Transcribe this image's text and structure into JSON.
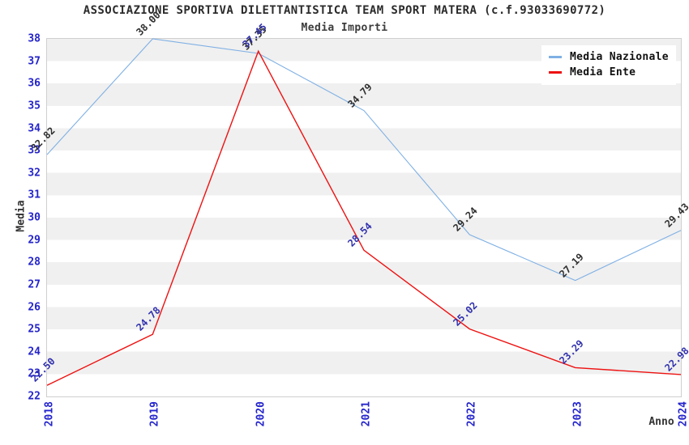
{
  "chart_data": {
    "type": "line",
    "title": "ASSOCIAZIONE SPORTIVA DILETTANTISTICA TEAM SPORT MATERA (c.f.93033690772)",
    "subtitle": "Media Importi",
    "xlabel": "Anno",
    "ylabel": "Media",
    "categories": [
      "2018",
      "2019",
      "2020",
      "2021",
      "2022",
      "2023",
      "2024"
    ],
    "series": [
      {
        "name": "Media Nazionale",
        "color": "#7FB0E4",
        "label_color": "#2F2F2F",
        "values": [
          32.82,
          38.0,
          37.35,
          34.79,
          29.24,
          27.19,
          29.43
        ]
      },
      {
        "name": "Media Ente",
        "color": "#EE1111",
        "label_color": "#3030AE",
        "values": [
          22.5,
          24.78,
          37.45,
          28.54,
          25.02,
          23.29,
          22.98
        ]
      }
    ],
    "ylim": [
      22,
      38
    ],
    "y_tick_step": 1,
    "grid": "horizontal-alternating-bands",
    "legend_position": "top-right",
    "value_label_format": "0.00"
  },
  "colors": {
    "tick_label": "#2424CC",
    "band_gray": "#F0F0F0",
    "band_white": "#FFFFFF",
    "plot_border": "#CFCFCF",
    "title": "#2B2B2B",
    "subtitle": "#3C3C3C",
    "axis_title": "#333333",
    "legend_text": "#111111",
    "background": "#FFFFFF"
  }
}
